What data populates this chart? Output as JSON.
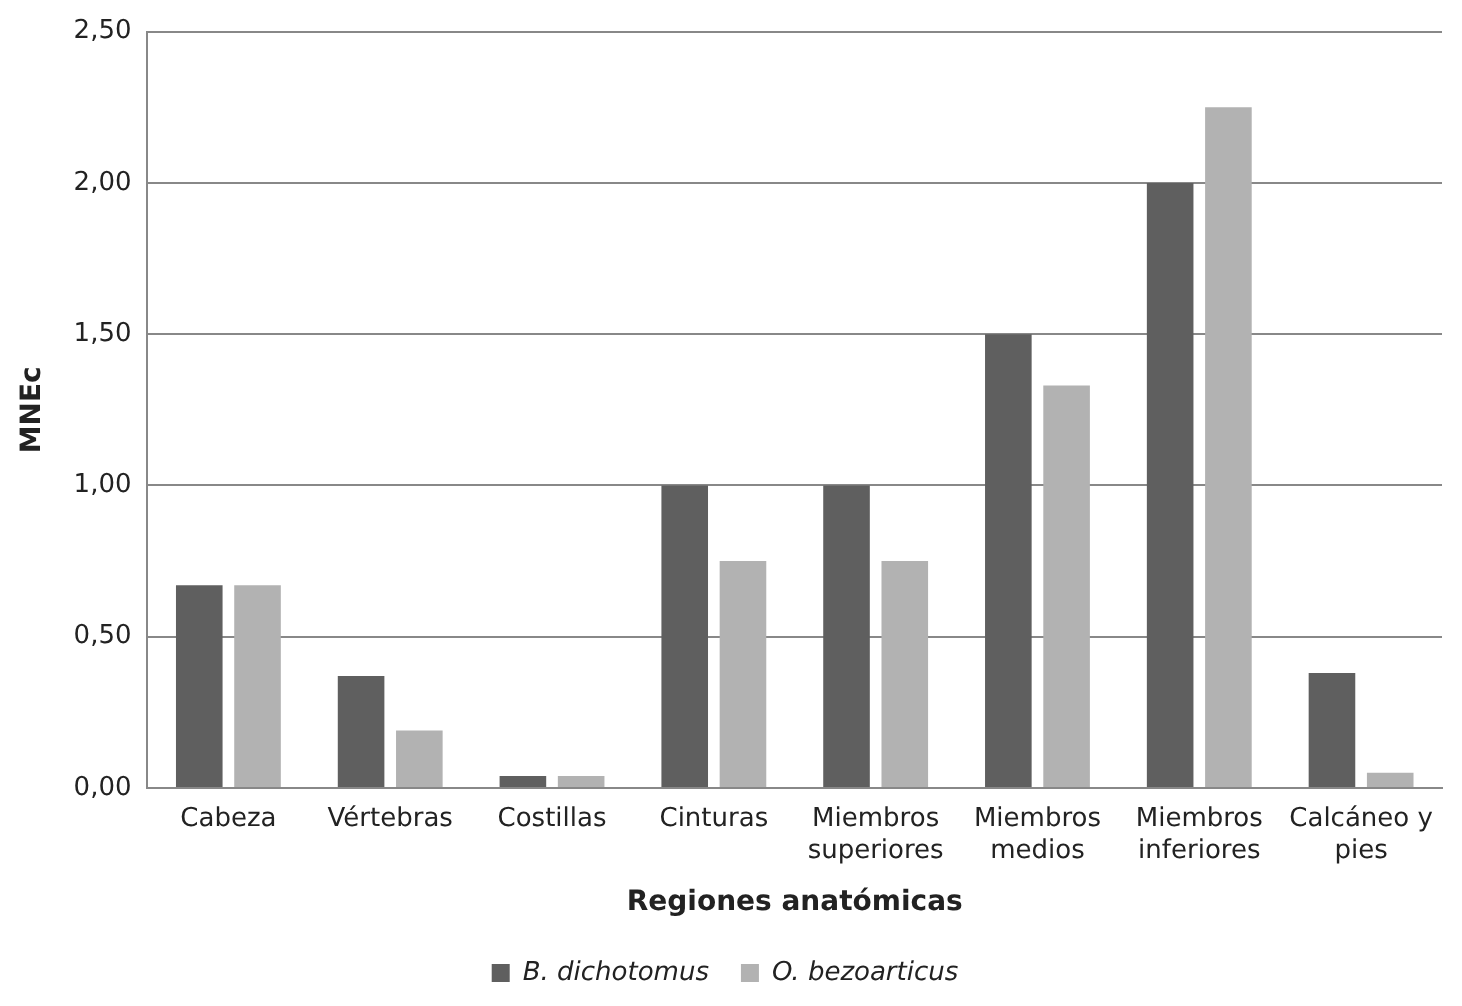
{
  "chart_data": {
    "type": "bar",
    "xlabel": "Regiones anatómicas",
    "ylabel": "MNEc",
    "categories": [
      "Cabeza",
      "Vértebras",
      "Costillas",
      "Cinturas",
      "Miembros superiores",
      "Miembros medios",
      "Miembros inferiores",
      "Calcáneo y pies"
    ],
    "series": [
      {
        "name": "B. dichotomus",
        "color": "#5f5f5f",
        "values": [
          0.67,
          0.37,
          0.04,
          1.0,
          1.0,
          1.5,
          2.0,
          0.38
        ]
      },
      {
        "name": "O. bezoarticus",
        "color": "#b2b2b2",
        "values": [
          0.67,
          0.19,
          0.04,
          0.75,
          0.75,
          1.33,
          2.25,
          0.05
        ]
      }
    ],
    "ylim": [
      0,
      2.5
    ],
    "yticks": [
      {
        "value": 0,
        "label": "0,00"
      },
      {
        "value": 0.5,
        "label": "0,50"
      },
      {
        "value": 1,
        "label": "1,00"
      },
      {
        "value": 1.5,
        "label": "1,50"
      },
      {
        "value": 2,
        "label": "2,00"
      },
      {
        "value": 2.5,
        "label": "2,50"
      }
    ],
    "grid": "y",
    "legend": "bottom"
  }
}
